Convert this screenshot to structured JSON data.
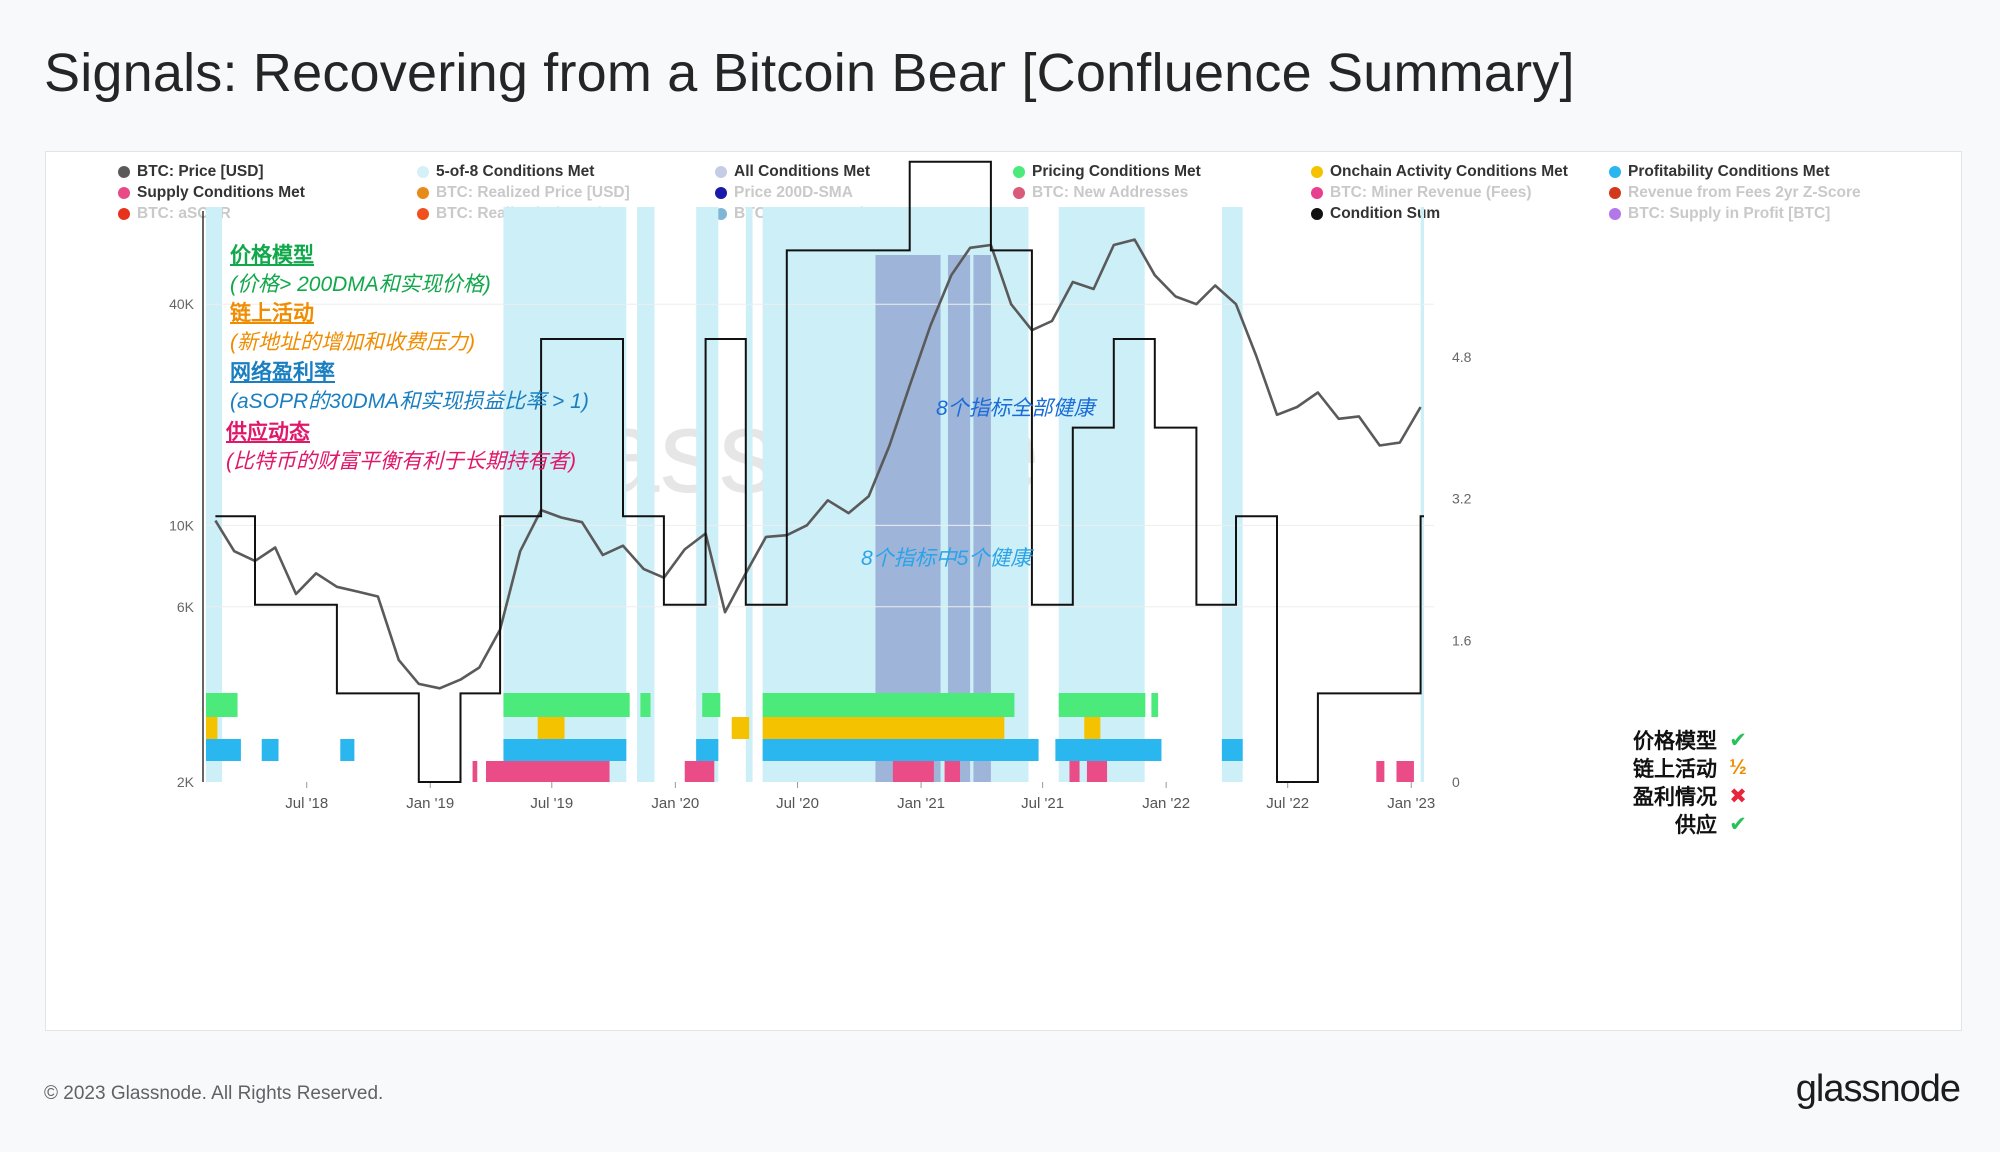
{
  "title": "Signals: Recovering from a Bitcoin Bear [Confluence Summary]",
  "footer": {
    "copyright": "© 2023 Glassnode. All Rights Reserved.",
    "brand": "glassnode"
  },
  "watermark": "glassnode",
  "legend": [
    {
      "label": "BTC: Price [USD]",
      "color": "#5a5a5a",
      "active": true
    },
    {
      "label": "5-of-8 Conditions Met",
      "color": "#d4f1f8",
      "active": true
    },
    {
      "label": "All Conditions Met",
      "color": "#c5cde6",
      "active": true
    },
    {
      "label": "Pricing Conditions Met",
      "color": "#4cea7a",
      "active": true
    },
    {
      "label": "Onchain Activity Conditions Met",
      "color": "#f5c200",
      "active": true
    },
    {
      "label": "Profitability Conditions Met",
      "color": "#2ab7f0",
      "active": true
    },
    {
      "label": "Supply Conditions Met",
      "color": "#e84a87",
      "active": true
    },
    {
      "label": "BTC: Realized Price [USD]",
      "color": "#e88a1a",
      "active": false
    },
    {
      "label": "Price 200D-SMA",
      "color": "#1a1aa8",
      "active": false
    },
    {
      "label": "BTC: New Addresses",
      "color": "#d95a7a",
      "active": false
    },
    {
      "label": "BTC: Miner Revenue (Fees)",
      "color": "#e83f8f",
      "active": false
    },
    {
      "label": "Revenue from Fees 2yr Z-Score",
      "color": "#d4381c",
      "active": false
    },
    {
      "label": "BTC: aSOPR",
      "color": "#e8321e",
      "active": false
    },
    {
      "label": "BTC: Realized P/L Ratio",
      "color": "#f0501e",
      "active": false
    },
    {
      "label": "BTC: RHODL Ratio",
      "color": "#7fb6d6",
      "active": false
    },
    {
      "label": "-",
      "color": "",
      "active": true
    },
    {
      "label": "Condition Sum",
      "color": "#111111",
      "active": true
    },
    {
      "label": "BTC: Supply in Profit [BTC]",
      "color": "#b277e8",
      "active": false
    }
  ],
  "annotations": {
    "pricing_head": "价格模型",
    "pricing_desc": "(价格> 200DMA和实现价格)",
    "onchain_head": "链上活动",
    "onchain_desc": "(新地址的增加和收费压力)",
    "profit_head": "网络盈利率",
    "profit_desc": "(aSOPR的30DMA和实现损益比率 > 1)",
    "supply_head": "供应动态",
    "supply_desc": "(比特币的财富平衡有利于长期持有者)",
    "all_healthy": "8个指标全部健康",
    "five_healthy": "8个指标中5个健康"
  },
  "checklist": [
    {
      "label": "价格模型",
      "mark": "✔",
      "color": "#28c25a"
    },
    {
      "label": "链上活动",
      "mark": "½",
      "color": "#f08c00"
    },
    {
      "label": "盈利情况",
      "mark": "✖",
      "color": "#e8253a"
    },
    {
      "label": "供应",
      "mark": "✔",
      "color": "#28c25a"
    }
  ],
  "colors": {
    "price": "#5a5a5a",
    "five": "#cdeff7",
    "all": "#8da2cf",
    "pricing": "#4cea7a",
    "onchain": "#f5c200",
    "profit": "#2ab7f0",
    "supply": "#ea4c88",
    "sum": "#111111",
    "annot_green": "#10a84a",
    "annot_orange": "#f08c00",
    "annot_blue": "#1a7fc0",
    "annot_pink": "#e0186a",
    "annot_mid_blue": "#1a6cd8",
    "annot_light_blue": "#2ba3e8"
  },
  "chart_data": {
    "type": "line",
    "title": "",
    "x_ticks": [
      "Jul '18",
      "Jan '19",
      "Jul '19",
      "Jan '20",
      "Jul '20",
      "Jan '21",
      "Jul '21",
      "Jan '22",
      "Jul '22",
      "Jan '23"
    ],
    "y_left": {
      "scale": "log",
      "ticks": [
        "2K",
        "6K",
        "10K",
        "40K"
      ],
      "range": [
        2000,
        70000
      ]
    },
    "y_right": {
      "scale": "linear",
      "ticks": [
        "0",
        "1.6",
        "3.2",
        "4.8"
      ],
      "range": [
        0,
        6.4
      ]
    },
    "series": [
      {
        "name": "BTC: Price [USD]",
        "x": [
          "2018-02",
          "2018-03",
          "2018-04",
          "2018-05",
          "2018-06",
          "2018-07",
          "2018-08",
          "2018-09",
          "2018-10",
          "2018-11",
          "2018-12",
          "2019-01",
          "2019-02",
          "2019-03",
          "2019-04",
          "2019-05",
          "2019-06",
          "2019-07",
          "2019-08",
          "2019-09",
          "2019-10",
          "2019-11",
          "2019-12",
          "2020-01",
          "2020-02",
          "2020-03",
          "2020-04",
          "2020-05",
          "2020-06",
          "2020-07",
          "2020-08",
          "2020-09",
          "2020-10",
          "2020-11",
          "2020-12",
          "2021-01",
          "2021-02",
          "2021-03",
          "2021-04",
          "2021-05",
          "2021-06",
          "2021-07",
          "2021-08",
          "2021-09",
          "2021-10",
          "2021-11",
          "2021-12",
          "2022-01",
          "2022-02",
          "2022-03",
          "2022-04",
          "2022-05",
          "2022-06",
          "2022-07",
          "2022-08",
          "2022-09",
          "2022-10",
          "2022-11",
          "2022-12",
          "2023-01"
        ],
        "values": [
          10300,
          8500,
          8000,
          8700,
          6500,
          7400,
          6800,
          6600,
          6400,
          4300,
          3700,
          3600,
          3800,
          4100,
          5200,
          8500,
          11000,
          10500,
          10200,
          8300,
          8800,
          7600,
          7200,
          8600,
          9500,
          5800,
          7400,
          9300,
          9400,
          10000,
          11700,
          10800,
          12000,
          16500,
          24000,
          35000,
          48000,
          57000,
          58000,
          40000,
          34000,
          36000,
          46000,
          44000,
          58000,
          60000,
          48000,
          42000,
          40000,
          45000,
          40000,
          29000,
          20000,
          21000,
          23000,
          19500,
          19800,
          16500,
          16800,
          21000
        ]
      },
      {
        "name": "Condition Sum",
        "x": [
          "2018-02",
          "2018-04",
          "2018-06",
          "2018-08",
          "2018-10",
          "2018-12",
          "2019-02",
          "2019-04",
          "2019-06",
          "2019-08",
          "2019-10",
          "2019-12",
          "2020-02",
          "2020-04",
          "2020-06",
          "2020-08",
          "2020-10",
          "2020-12",
          "2021-02",
          "2021-04",
          "2021-06",
          "2021-08",
          "2021-10",
          "2021-12",
          "2022-02",
          "2022-04",
          "2022-06",
          "2022-08",
          "2022-10",
          "2022-12",
          "2023-01"
        ],
        "values": [
          3,
          2,
          2,
          1,
          1,
          0,
          1,
          3,
          5,
          5,
          3,
          2,
          5,
          2,
          6,
          6,
          6,
          7,
          7,
          6,
          2,
          4,
          5,
          4,
          2,
          3,
          0,
          1,
          1,
          1,
          3
        ]
      }
    ]
  }
}
